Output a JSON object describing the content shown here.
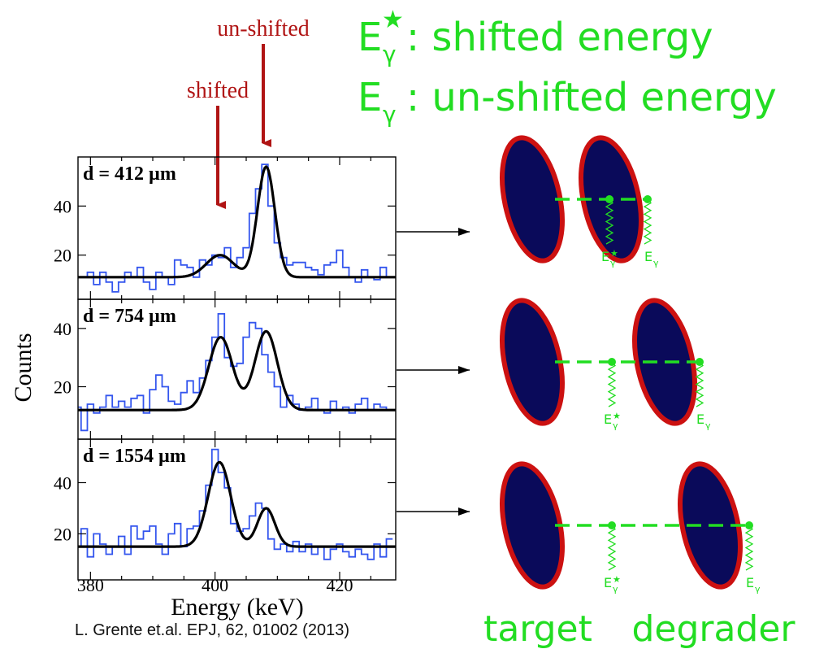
{
  "annotations": {
    "unshifted_arrow_label": "un-shifted",
    "shifted_arrow_label": "shifted",
    "arrow_color": "#b01414"
  },
  "legend": {
    "symbol_main": "E",
    "symbol_sub": "γ",
    "star": "★",
    "shifted_text": ": shifted energy",
    "unshifted_text": ": un-shifted energy",
    "color": "#22dd22"
  },
  "diagram": {
    "ion_label": "E",
    "ion_sub": "γ",
    "ion_star": "★",
    "target_label": "target",
    "degrader_label": "degrader",
    "ellipse_fill": "#0a0a5a",
    "ellipse_stroke": "#cc1111",
    "beam_color": "#22dd22"
  },
  "chart_data": {
    "type": "line",
    "shared_xlabel": "Energy (keV)",
    "shared_ylabel": "Counts",
    "xlim": [
      378,
      429
    ],
    "x_ticks": [
      380,
      400,
      420
    ],
    "peak_positions_keV": {
      "shifted": 400.8,
      "unshifted": 408.2
    },
    "citation": "L. Grente et.al. EPJ, 62, 01002 (2013)",
    "panels": [
      {
        "label": "d = 412 µm",
        "ylim": [
          2,
          60
        ],
        "y_ticks": [
          20,
          40
        ],
        "series": [
          {
            "kind": "histogram",
            "color": "#3355ee",
            "x": [
              378,
              379,
              380,
              381,
              382,
              383,
              384,
              385,
              386,
              387,
              388,
              389,
              390,
              391,
              392,
              393,
              394,
              395,
              396,
              397,
              398,
              399,
              400,
              401,
              402,
              403,
              404,
              405,
              406,
              407,
              408,
              409,
              410,
              411,
              412,
              413,
              414,
              415,
              416,
              417,
              418,
              419,
              420,
              421,
              422,
              423,
              424,
              425,
              426,
              427,
              428
            ],
            "values": [
              11,
              11,
              13,
              8,
              13,
              9,
              5,
              9,
              13,
              11,
              15,
              9,
              6,
              13,
              11,
              8,
              18,
              16,
              15,
              11,
              18,
              16,
              20,
              19,
              23,
              15,
              19,
              23,
              37,
              47,
              57,
              40,
              25,
              19,
              16,
              17,
              17,
              15,
              14,
              12,
              16,
              17,
              22,
              15,
              11,
              9,
              14,
              11,
              10,
              15,
              11
            ]
          },
          {
            "kind": "fit",
            "color": "#000000",
            "baseline": 11,
            "peaks": [
              {
                "center": 400.8,
                "amp": 9,
                "sigma": 2.2
              },
              {
                "center": 408.2,
                "amp": 45,
                "sigma": 1.4
              }
            ]
          }
        ]
      },
      {
        "label": "d = 754 µm",
        "ylim": [
          2,
          50
        ],
        "y_ticks": [
          20,
          40
        ],
        "series": [
          {
            "kind": "histogram",
            "color": "#3355ee",
            "x": [
              378,
              379,
              380,
              381,
              382,
              383,
              384,
              385,
              386,
              387,
              388,
              389,
              390,
              391,
              392,
              393,
              394,
              395,
              396,
              397,
              398,
              399,
              400,
              401,
              402,
              403,
              404,
              405,
              406,
              407,
              408,
              409,
              410,
              411,
              412,
              413,
              414,
              415,
              416,
              417,
              418,
              419,
              420,
              421,
              422,
              423,
              424,
              425,
              426,
              427,
              428
            ],
            "values": [
              13,
              5,
              14,
              11,
              13,
              17,
              13,
              15,
              13,
              16,
              17,
              11,
              19,
              24,
              20,
              15,
              14,
              18,
              22,
              18,
              23,
              29,
              37,
              45,
              30,
              27,
              28,
              37,
              42,
              40,
              31,
              25,
              20,
              13,
              17,
              14,
              12,
              13,
              16,
              12,
              11,
              15,
              12,
              13,
              11,
              14,
              16,
              12,
              14,
              13,
              12
            ]
          },
          {
            "kind": "fit",
            "color": "#000000",
            "baseline": 12,
            "peaks": [
              {
                "center": 400.9,
                "amp": 25,
                "sigma": 1.9
              },
              {
                "center": 408.2,
                "amp": 27,
                "sigma": 1.8
              }
            ]
          }
        ]
      },
      {
        "label": "d = 1554 µm",
        "ylim": [
          2,
          57
        ],
        "y_ticks": [
          20,
          40
        ],
        "series": [
          {
            "kind": "histogram",
            "color": "#3355ee",
            "x": [
              378,
              379,
              380,
              381,
              382,
              383,
              384,
              385,
              386,
              387,
              388,
              389,
              390,
              391,
              392,
              393,
              394,
              395,
              396,
              397,
              398,
              399,
              400,
              401,
              402,
              403,
              404,
              405,
              406,
              407,
              408,
              409,
              410,
              411,
              412,
              413,
              414,
              415,
              416,
              417,
              418,
              419,
              420,
              421,
              422,
              423,
              424,
              425,
              426,
              427,
              428
            ],
            "values": [
              15,
              22,
              11,
              20,
              16,
              12,
              15,
              19,
              12,
              23,
              18,
              21,
              23,
              16,
              12,
              20,
              24,
              15,
              22,
              23,
              29,
              39,
              53,
              44,
              38,
              24,
              21,
              22,
              27,
              32,
              30,
              18,
              14,
              16,
              13,
              17,
              13,
              16,
              12,
              15,
              10,
              14,
              16,
              13,
              11,
              14,
              12,
              10,
              16,
              11,
              18
            ]
          },
          {
            "kind": "fit",
            "color": "#000000",
            "baseline": 15,
            "peaks": [
              {
                "center": 400.7,
                "amp": 33,
                "sigma": 1.8
              },
              {
                "center": 408.2,
                "amp": 15,
                "sigma": 1.4
              }
            ]
          }
        ]
      }
    ]
  }
}
